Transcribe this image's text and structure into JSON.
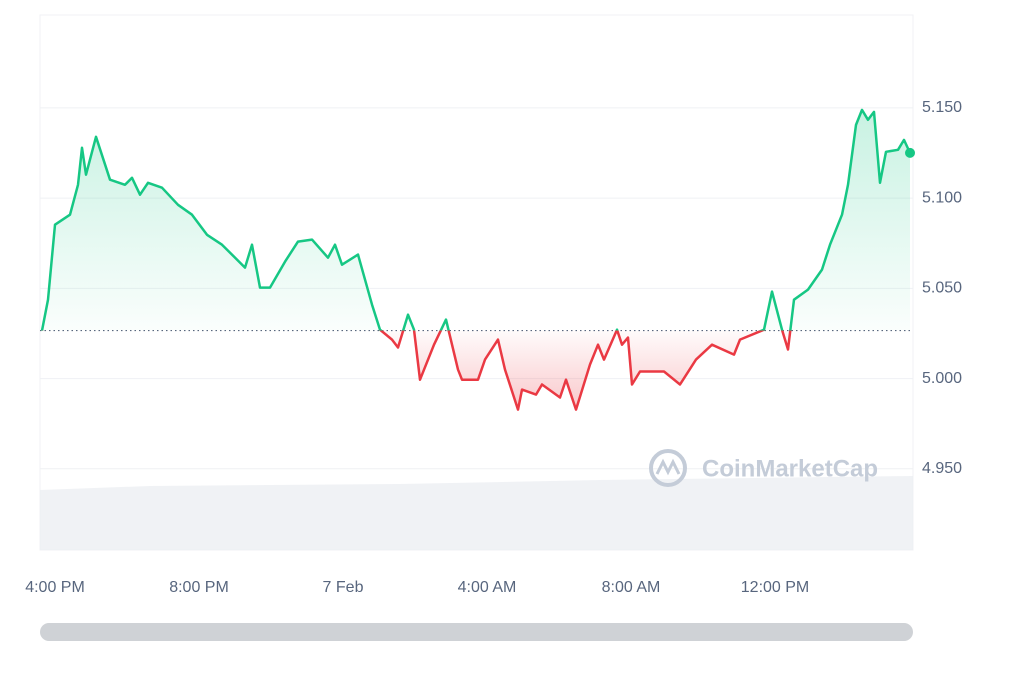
{
  "chart_data": {
    "type": "line",
    "watermark": "CoinMarketCap",
    "x": [
      15.639,
      15.806,
      16.0,
      16.417,
      16.639,
      16.75,
      16.861,
      17.139,
      17.528,
      17.944,
      18.139,
      18.361,
      18.583,
      18.972,
      19.417,
      19.806,
      20.222,
      20.639,
      21.278,
      21.472,
      21.694,
      21.972,
      22.389,
      22.75,
      23.139,
      23.583,
      23.778,
      23.972,
      24.417,
      24.806,
      25.028,
      25.361,
      25.528,
      25.806,
      25.972,
      26.139,
      26.528,
      26.861,
      27.194,
      27.306,
      27.75,
      27.944,
      28.306,
      28.5,
      28.861,
      28.972,
      29.361,
      29.528,
      30.028,
      30.194,
      30.472,
      30.861,
      31.083,
      31.25,
      31.611,
      31.75,
      31.917,
      32.028,
      32.25,
      32.917,
      33.361,
      33.806,
      34.25,
      34.861,
      35.028,
      35.694,
      35.917,
      36.194,
      36.361,
      36.528,
      36.917,
      37.306,
      37.528,
      37.861,
      38.028,
      38.25,
      38.417,
      38.583,
      38.75,
      38.917,
      39.083,
      39.417,
      39.583,
      39.75
    ],
    "values": [
      5.0266,
      5.0437,
      5.0853,
      5.0908,
      5.1074,
      5.1279,
      5.113,
      5.134,
      5.1102,
      5.1074,
      5.1113,
      5.1019,
      5.1085,
      5.1058,
      5.0963,
      5.0908,
      5.0797,
      5.0742,
      5.0615,
      5.0742,
      5.0504,
      5.0504,
      5.0648,
      5.0759,
      5.077,
      5.067,
      5.0742,
      5.0631,
      5.0687,
      5.041,
      5.0271,
      5.0216,
      5.0172,
      5.0354,
      5.0271,
      4.9994,
      5.0188,
      5.0327,
      5.005,
      4.9994,
      4.9994,
      5.0105,
      5.0216,
      5.005,
      4.9828,
      4.9939,
      4.9911,
      4.9967,
      4.9895,
      4.9994,
      4.9828,
      5.0078,
      5.0188,
      5.0105,
      5.0271,
      5.0188,
      5.0227,
      4.9967,
      5.0039,
      5.0039,
      4.9967,
      5.0105,
      5.0188,
      5.0133,
      5.0216,
      5.0271,
      5.0482,
      5.0271,
      5.0161,
      5.0437,
      5.0493,
      5.0604,
      5.0742,
      5.0908,
      5.1074,
      5.1406,
      5.1489,
      5.1434,
      5.1478,
      5.1085,
      5.1257,
      5.1268,
      5.1323,
      5.1251
    ],
    "baseline": 5.0266,
    "color_up": "#16c784",
    "color_down": "#ea3943",
    "xlim": [
      15.583,
      39.833
    ],
    "xticks": [
      {
        "value": 16,
        "label": "4:00 PM"
      },
      {
        "value": 20,
        "label": "8:00 PM"
      },
      {
        "value": 24,
        "label": "7 Feb"
      },
      {
        "value": 28,
        "label": "4:00 AM"
      },
      {
        "value": 32,
        "label": "8:00 AM"
      },
      {
        "value": 36,
        "label": "12:00 PM"
      }
    ],
    "ylim": [
      4.905,
      5.2015
    ],
    "yticks": [
      {
        "value": 4.95,
        "label": "4.950"
      },
      {
        "value": 5.0,
        "label": "5.000"
      },
      {
        "value": 5.05,
        "label": "5.050"
      },
      {
        "value": 5.1,
        "label": "5.100"
      },
      {
        "value": 5.15,
        "label": "5.150"
      }
    ],
    "grid": true
  }
}
